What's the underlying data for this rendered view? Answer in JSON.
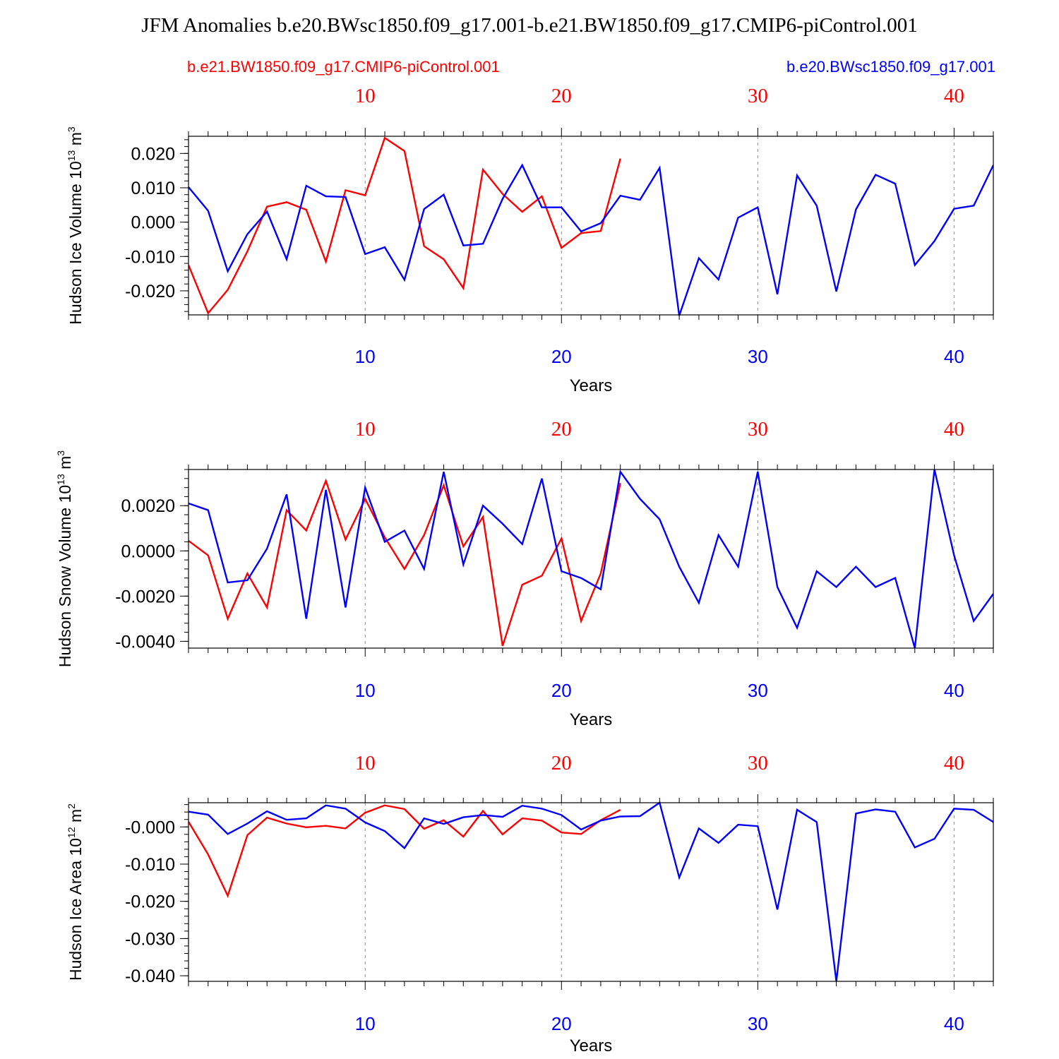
{
  "title": "JFM Anomalies b.e20.BWsc1850.f09_g17.001-b.e21.BW1850.f09_g17.CMIP6-piControl.001",
  "legend": {
    "red_label": "b.e21.BW1850.f09_g17.CMIP6-piControl.001",
    "blue_label": "b.e20.BWsc1850.f09_g17.001"
  },
  "colors": {
    "red": "#ff0000",
    "blue": "#0000ff",
    "axes": "#000000",
    "grid": "#888888"
  },
  "chart_data": [
    {
      "type": "line",
      "ylabel_main": "Hudson Ice Volume 10",
      "ylabel_exp": "13",
      "ylabel_unit": " m",
      "ylabel_unit_exp": "3",
      "xlabel": "Years",
      "xlim": [
        1,
        42
      ],
      "ylim": [
        -0.027,
        0.025
      ],
      "yticks": [
        0.02,
        0.01,
        0.0,
        -0.01,
        -0.02
      ],
      "ytick_labels": [
        "0.020",
        "0.010",
        "0.000",
        "-0.010",
        "-0.020"
      ],
      "ytick_minor_step": 0.002,
      "xticks": [
        10,
        20,
        30,
        40
      ],
      "xtick_labels": [
        "10",
        "20",
        "30",
        "40"
      ],
      "series": [
        {
          "name": "b.e21.BW1850.f09_g17.CMIP6-piControl.001",
          "color": "#ff0000",
          "x": [
            1,
            2,
            3,
            4,
            5,
            6,
            7,
            8,
            9,
            10,
            11,
            12,
            13,
            14,
            15,
            16,
            17,
            18,
            19,
            20,
            21,
            22,
            23
          ],
          "values": [
            -0.0125,
            -0.0265,
            -0.0197,
            -0.0085,
            0.0045,
            0.0058,
            0.0036,
            -0.0115,
            0.0093,
            0.0078,
            0.0245,
            0.0207,
            -0.007,
            -0.0108,
            -0.0192,
            0.0153,
            0.0082,
            0.003,
            0.0075,
            -0.0075,
            -0.0032,
            -0.0026,
            0.0185
          ]
        },
        {
          "name": "b.e20.BWsc1850.f09_g17.001",
          "color": "#0000ff",
          "x": [
            1,
            2,
            3,
            4,
            5,
            6,
            7,
            8,
            9,
            10,
            11,
            12,
            13,
            14,
            15,
            16,
            17,
            18,
            19,
            20,
            21,
            22,
            23,
            24,
            25,
            26,
            27,
            28,
            29,
            30,
            31,
            32,
            33,
            34,
            35,
            36,
            37,
            38,
            39,
            40,
            41,
            42
          ],
          "values": [
            0.0102,
            0.0033,
            -0.0143,
            -0.0035,
            0.0031,
            -0.0108,
            0.0106,
            0.0075,
            0.0073,
            -0.0093,
            -0.0073,
            -0.0168,
            0.0038,
            0.008,
            -0.0068,
            -0.0063,
            0.0068,
            0.0166,
            0.0043,
            0.0043,
            -0.0027,
            -0.0003,
            0.0077,
            0.0065,
            0.0158,
            -0.0272,
            -0.0105,
            -0.0167,
            0.0013,
            0.0043,
            -0.021,
            0.0136,
            0.0048,
            -0.0202,
            0.0037,
            0.0138,
            0.0112,
            -0.0125,
            -0.0055,
            0.0039,
            0.0048,
            0.0166
          ]
        }
      ]
    },
    {
      "type": "line",
      "ylabel_main": "Hudson Snow Volume 10",
      "ylabel_exp": "13",
      "ylabel_unit": " m",
      "ylabel_unit_exp": "3",
      "xlabel": "Years",
      "xlim": [
        1,
        42
      ],
      "ylim": [
        -0.0043,
        0.0036
      ],
      "yticks": [
        0.002,
        0.0,
        -0.002,
        -0.004
      ],
      "ytick_labels": [
        "0.0020",
        "0.0000",
        "-0.0020",
        "-0.0040"
      ],
      "ytick_minor_step": 0.0004,
      "xticks": [
        10,
        20,
        30,
        40
      ],
      "xtick_labels": [
        "10",
        "20",
        "30",
        "40"
      ],
      "series": [
        {
          "name": "b.e21.BW1850.f09_g17.CMIP6-piControl.001",
          "color": "#ff0000",
          "x": [
            1,
            2,
            3,
            4,
            5,
            6,
            7,
            8,
            9,
            10,
            11,
            12,
            13,
            14,
            15,
            16,
            17,
            18,
            19,
            20,
            21,
            22,
            23
          ],
          "values": [
            0.00045,
            -0.0002,
            -0.003,
            -0.001,
            -0.0025,
            0.0018,
            0.0009,
            0.0031,
            0.0005,
            0.0023,
            0.0006,
            -0.0008,
            0.0007,
            0.0029,
            0.0002,
            0.0015,
            -0.0042,
            -0.0015,
            -0.0011,
            0.00055,
            -0.0031,
            -0.001,
            0.003
          ]
        },
        {
          "name": "b.e20.BWsc1850.f09_g17.001",
          "color": "#0000ff",
          "x": [
            1,
            2,
            3,
            4,
            5,
            6,
            7,
            8,
            9,
            10,
            11,
            12,
            13,
            14,
            15,
            16,
            17,
            18,
            19,
            20,
            21,
            22,
            23,
            24,
            25,
            26,
            27,
            28,
            29,
            30,
            31,
            32,
            33,
            34,
            35,
            36,
            37,
            38,
            39,
            40,
            41,
            42
          ],
          "values": [
            0.0021,
            0.0018,
            -0.0014,
            -0.0013,
            0.0001,
            0.0025,
            -0.003,
            0.0027,
            -0.0025,
            0.0028,
            0.0004,
            0.0009,
            -0.0008,
            0.0035,
            -0.0006,
            0.002,
            0.0012,
            0.0003,
            0.0032,
            -0.0009,
            -0.0012,
            -0.0017,
            0.0035,
            0.0023,
            0.0014,
            -0.0007,
            -0.0023,
            0.0007,
            -0.0007,
            0.0035,
            -0.0016,
            -0.0034,
            -0.0009,
            -0.0016,
            -0.0007,
            -0.0016,
            -0.0012,
            -0.0043,
            0.0036,
            -0.0002,
            -0.0031,
            -0.0019
          ]
        }
      ]
    },
    {
      "type": "line",
      "ylabel_main": "Hudson Ice Area 10",
      "ylabel_exp": "12",
      "ylabel_unit": " m",
      "ylabel_unit_exp": "2",
      "xlabel": "Years",
      "xlim": [
        1,
        42
      ],
      "ylim": [
        -0.0415,
        0.0065
      ],
      "yticks": [
        0.0,
        -0.01,
        -0.02,
        -0.03,
        -0.04
      ],
      "ytick_labels": [
        "-0.000",
        "-0.010",
        "-0.020",
        "-0.030",
        "-0.040"
      ],
      "ytick_minor_step": 0.002,
      "xticks": [
        10,
        20,
        30,
        40
      ],
      "xtick_labels": [
        "10",
        "20",
        "30",
        "40"
      ],
      "series": [
        {
          "name": "b.e21.BW1850.f09_g17.CMIP6-piControl.001",
          "color": "#ff0000",
          "x": [
            1,
            2,
            3,
            4,
            5,
            6,
            7,
            8,
            9,
            10,
            11,
            12,
            13,
            14,
            15,
            16,
            17,
            18,
            19,
            20,
            21,
            22,
            23
          ],
          "values": [
            0.0014,
            -0.0074,
            -0.0185,
            -0.0022,
            0.0025,
            0.0009,
            -0.0001,
            0.0003,
            -0.0004,
            0.0038,
            0.0058,
            0.0048,
            -0.0005,
            0.0018,
            -0.0026,
            0.0043,
            -0.002,
            0.0023,
            0.0017,
            -0.0015,
            -0.0019,
            0.0018,
            0.0046
          ]
        },
        {
          "name": "b.e20.BWsc1850.f09_g17.001",
          "color": "#0000ff",
          "x": [
            1,
            2,
            3,
            4,
            5,
            6,
            7,
            8,
            9,
            10,
            11,
            12,
            13,
            14,
            15,
            16,
            17,
            18,
            19,
            20,
            21,
            22,
            23,
            24,
            25,
            26,
            27,
            28,
            29,
            30,
            31,
            32,
            33,
            34,
            35,
            36,
            37,
            38,
            39,
            40,
            41,
            42
          ],
          "values": [
            0.0041,
            0.0033,
            -0.0019,
            0.0009,
            0.0042,
            0.0019,
            0.0023,
            0.0058,
            0.0049,
            0.0012,
            -0.0011,
            -0.0057,
            0.0023,
            0.0008,
            0.0026,
            0.0032,
            0.0027,
            0.0057,
            0.0049,
            0.0032,
            -0.0007,
            0.0017,
            0.0028,
            0.0029,
            0.0065,
            -0.0136,
            -0.0004,
            -0.0043,
            0.0006,
            0.0002,
            -0.0222,
            0.0046,
            0.0013,
            -0.0415,
            0.0036,
            0.0047,
            0.0041,
            -0.0055,
            -0.0032,
            0.0049,
            0.0046,
            0.0013
          ]
        }
      ]
    }
  ]
}
